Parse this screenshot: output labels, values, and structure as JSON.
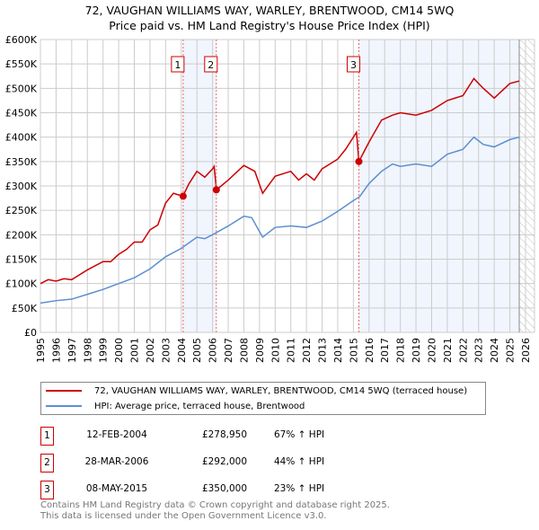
{
  "chart_data": {
    "type": "line",
    "title": "72, VAUGHAN WILLIAMS WAY, WARLEY, BRENTWOOD, CM14 5WQ",
    "subtitle": "Price paid vs. HM Land Registry's House Price Index (HPI)",
    "xlim": [
      1995,
      2026
    ],
    "ylim": [
      0,
      600000
    ],
    "yticks": [
      "£0",
      "£50K",
      "£100K",
      "£150K",
      "£200K",
      "£250K",
      "£300K",
      "£350K",
      "£400K",
      "£450K",
      "£500K",
      "£550K",
      "£600K"
    ],
    "xticks": [
      "1995",
      "1996",
      "1997",
      "1998",
      "1999",
      "2000",
      "2001",
      "2002",
      "2003",
      "2004",
      "2005",
      "2006",
      "2007",
      "2008",
      "2009",
      "2010",
      "2011",
      "2012",
      "2013",
      "2014",
      "2015",
      "2016",
      "2017",
      "2018",
      "2019",
      "2020",
      "2021",
      "2022",
      "2023",
      "2024",
      "2025",
      "2026"
    ],
    "grid": true,
    "series": [
      {
        "name": "72, VAUGHAN WILLIAMS WAY, WARLEY, BRENTWOOD, CM14 5WQ (terraced house)",
        "color": "#cc0000",
        "x": [
          1995,
          1995.5,
          1996,
          1996.5,
          1997,
          1997.5,
          1998,
          1999,
          1999.5,
          2000,
          2000.5,
          2001,
          2001.5,
          2002,
          2002.5,
          2003,
          2003.5,
          2004.1,
          2004.5,
          2005,
          2005.5,
          2006,
          2006.1,
          2006.25,
          2007,
          2008,
          2008.7,
          2009.2,
          2010,
          2011,
          2011.5,
          2012,
          2012.5,
          2013,
          2014,
          2014.5,
          2015.2,
          2015.35,
          2016,
          2016.8,
          2017.5,
          2018,
          2019,
          2020,
          2021,
          2022,
          2022.7,
          2023.3,
          2024,
          2025,
          2025.6
        ],
        "values": [
          100000,
          108000,
          105000,
          110000,
          108000,
          118000,
          128000,
          145000,
          145000,
          160000,
          170000,
          185000,
          185000,
          210000,
          220000,
          265000,
          285000,
          278950,
          305000,
          330000,
          318000,
          335000,
          340000,
          292000,
          312000,
          342000,
          330000,
          285000,
          320000,
          330000,
          312000,
          325000,
          312000,
          335000,
          355000,
          375000,
          410000,
          350000,
          390000,
          435000,
          445000,
          450000,
          445000,
          455000,
          475000,
          485000,
          520000,
          500000,
          480000,
          510000,
          515000
        ]
      },
      {
        "name": "HPI: Average price, terraced house, Brentwood",
        "color": "#5b8fd1",
        "x": [
          1995,
          1996,
          1997,
          1998,
          1999,
          2000,
          2001,
          2002,
          2003,
          2004,
          2005,
          2005.5,
          2006,
          2007,
          2008,
          2008.5,
          2009.2,
          2010,
          2011,
          2012,
          2013,
          2014,
          2015,
          2015.4,
          2016,
          2016.8,
          2017.5,
          2018,
          2019,
          2020,
          2021,
          2022,
          2022.7,
          2023.3,
          2024,
          2025,
          2025.6
        ],
        "values": [
          60000,
          65000,
          68000,
          78000,
          88000,
          100000,
          112000,
          130000,
          155000,
          172000,
          195000,
          192000,
          200000,
          218000,
          238000,
          235000,
          195000,
          215000,
          218000,
          215000,
          228000,
          248000,
          270000,
          278000,
          305000,
          330000,
          345000,
          340000,
          345000,
          340000,
          365000,
          375000,
          400000,
          385000,
          380000,
          395000,
          400000
        ]
      }
    ],
    "sales": [
      {
        "label": "1",
        "x": 2004.12,
        "value": 278950,
        "date": "12-FEB-2004",
        "price": "£278,950",
        "hpi": "67% ↑ HPI"
      },
      {
        "label": "2",
        "x": 2006.24,
        "value": 292000,
        "date": "28-MAR-2006",
        "price": "£292,000",
        "hpi": "44% ↑ HPI"
      },
      {
        "label": "3",
        "x": 2015.35,
        "value": 350000,
        "date": "08-MAY-2015",
        "price": "£350,000",
        "hpi": "23% ↑ HPI"
      }
    ],
    "shaded_ranges": [
      [
        2004.12,
        2006.24
      ],
      [
        2015.35,
        2025.6
      ]
    ]
  },
  "footer": [
    "Contains HM Land Registry data © Crown copyright and database right 2025.",
    "This data is licensed under the Open Government Licence v3.0."
  ]
}
